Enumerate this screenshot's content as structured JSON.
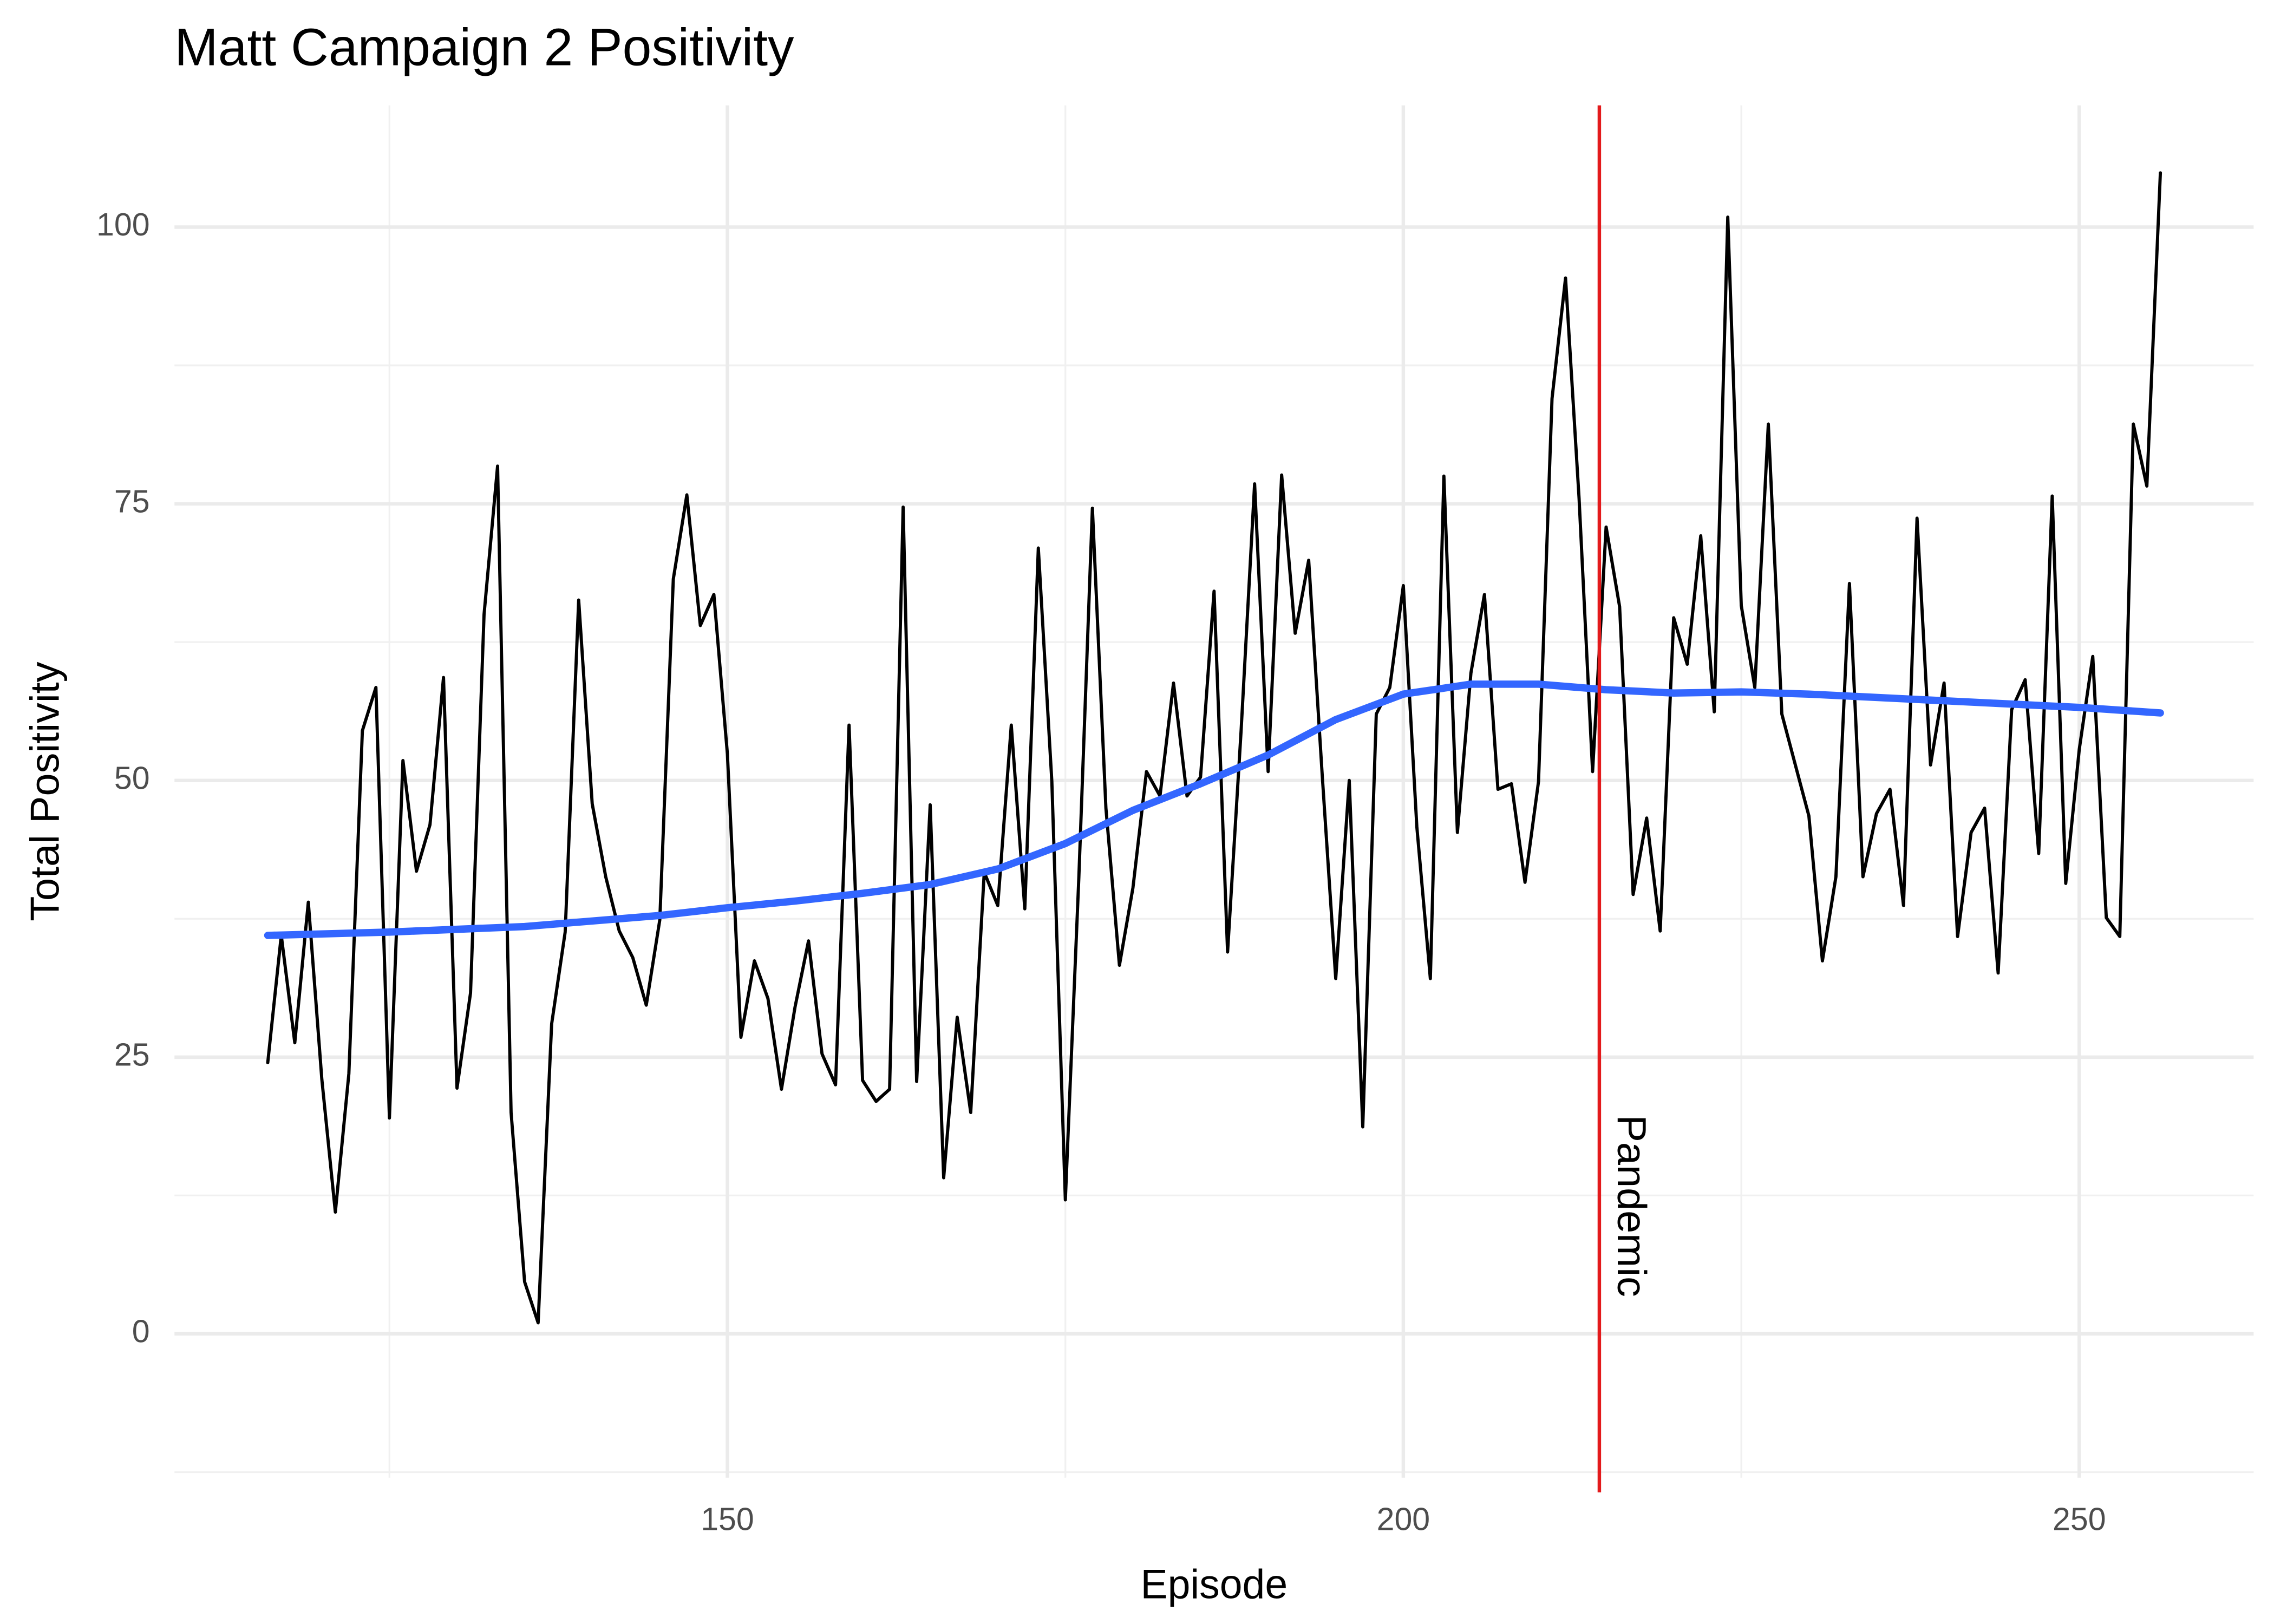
{
  "chart_data": {
    "type": "line",
    "title": "Matt Campaign 2 Positivity",
    "x_label": "Episode",
    "y_label": "Total Positivity",
    "xlim": [
      109.1,
      262.9
    ],
    "ylim": [
      -13,
      111
    ],
    "xticks": [
      150,
      200,
      250
    ],
    "yticks": [
      0,
      25,
      50,
      75,
      100
    ],
    "x_minor_ticks": [
      125,
      175,
      225
    ],
    "y_minor_ticks": [
      -12.5,
      12.5,
      37.5,
      62.5,
      87.5
    ],
    "grid": true,
    "vline": {
      "x": 214.5,
      "color": "#e31a1c",
      "label": "Pandemic"
    },
    "series": [
      {
        "name": "Total Positivity",
        "color": "#000000",
        "width": 2.2,
        "x": [
          116,
          117,
          118,
          119,
          120,
          121,
          122,
          123,
          124,
          125,
          126,
          127,
          128,
          129,
          130,
          131,
          132,
          133,
          134,
          135,
          136,
          137,
          138,
          139,
          140,
          141,
          142,
          143,
          144,
          145,
          146,
          147,
          148,
          149,
          150,
          151,
          152,
          153,
          154,
          155,
          156,
          157,
          158,
          159,
          160,
          161,
          162,
          163,
          164,
          165,
          166,
          167,
          168,
          169,
          170,
          171,
          172,
          173,
          174,
          175,
          176,
          177,
          178,
          179,
          180,
          181,
          182,
          183,
          184,
          185,
          186,
          187,
          188,
          189,
          190,
          191,
          192,
          193,
          194,
          195,
          196,
          197,
          198,
          199,
          200,
          201,
          202,
          203,
          204,
          205,
          206,
          207,
          208,
          209,
          210,
          211,
          212,
          213,
          214,
          215,
          216,
          217,
          218,
          219,
          220,
          221,
          222,
          223,
          224,
          225,
          226,
          227,
          228,
          229,
          230,
          231,
          232,
          233,
          234,
          235,
          236,
          237,
          238,
          239,
          240,
          241,
          242,
          243,
          244,
          245,
          246,
          247,
          248,
          249,
          250,
          251,
          252,
          253,
          254,
          255,
          256
        ],
        "values": [
          24.5,
          36,
          26.3,
          39,
          23,
          11,
          23.5,
          54.5,
          58.4,
          19.5,
          51.8,
          41.8,
          46,
          59.3,
          22.2,
          30.8,
          65,
          78.4,
          20,
          4.7,
          1,
          28,
          36.3,
          66.3,
          47.9,
          41.3,
          36.4,
          34,
          29.7,
          37.4,
          68.2,
          75.8,
          64,
          66.8,
          52.4,
          26.8,
          33.7,
          30.3,
          22.1,
          29.5,
          35.5,
          25.3,
          22.5,
          55,
          22.9,
          21,
          22.1,
          74.7,
          22.8,
          47.8,
          14.1,
          28.6,
          20,
          41.7,
          38.7,
          55,
          38.4,
          71,
          49.9,
          12.1,
          41.3,
          74.6,
          47.5,
          33.3,
          40.3,
          50.8,
          48.6,
          58.8,
          48.6,
          50.3,
          67.1,
          34.5,
          54.5,
          76.8,
          50.8,
          77.6,
          63.3,
          69.9,
          50.5,
          32.1,
          50,
          18.7,
          56,
          58.4,
          67.6,
          45.8,
          32.1,
          77.5,
          45.3,
          59.7,
          66.8,
          49.2,
          49.7,
          40.8,
          49.9,
          84.5,
          95.4,
          75.5,
          50.8,
          72.9,
          65.7,
          39.7,
          46.6,
          36.4,
          64.7,
          60.5,
          72.1,
          56.2,
          100.9,
          65.8,
          58.4,
          82.2,
          56,
          51.4,
          46.8,
          33.7,
          41.3,
          67.8,
          41.3,
          47,
          49.2,
          38.7,
          73.7,
          51.4,
          58.8,
          35.9,
          45.3,
          47.5,
          32.6,
          56.4,
          59.1,
          43.4,
          75.7,
          40.7,
          52.8,
          61.2,
          37.6,
          35.9,
          82.2,
          76.6,
          104.9
        ]
      },
      {
        "name": "Smooth",
        "color": "#3366ff",
        "width": 5,
        "x": [
          116,
          125,
          135,
          145,
          150,
          155,
          160,
          165,
          170,
          175,
          180,
          185,
          190,
          195,
          200,
          205,
          210,
          215,
          220,
          225,
          230,
          235,
          240,
          245,
          250,
          256
        ],
        "values": [
          36,
          36.3,
          36.8,
          37.8,
          38.5,
          39.1,
          39.8,
          40.6,
          42,
          44.3,
          47.3,
          49.7,
          52.3,
          55.5,
          57.8,
          58.7,
          58.7,
          58.2,
          57.9,
          58,
          57.8,
          57.5,
          57.2,
          56.9,
          56.6,
          56.1
        ]
      }
    ]
  }
}
